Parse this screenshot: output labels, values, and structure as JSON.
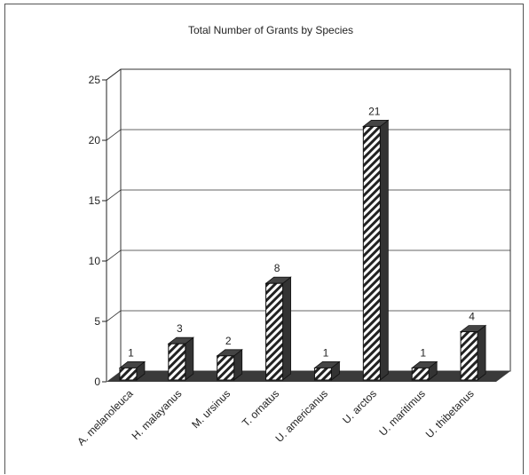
{
  "chart_data": {
    "type": "bar",
    "title": "Total Number of Grants by Species",
    "xlabel": "",
    "ylabel": "",
    "categories": [
      "A. melanoleuca",
      "H. malayanus",
      "M. ursinus",
      "T. ornatus",
      "U. americanus",
      "U. arctos",
      "U. maritimus",
      "U. thibetanus"
    ],
    "values": [
      1,
      3,
      2,
      8,
      1,
      21,
      1,
      4
    ],
    "ylim": [
      0,
      25
    ],
    "yticks": [
      "0",
      "5",
      "10",
      "15",
      "20",
      "25"
    ],
    "grid": true,
    "style": "3d-hatched",
    "colors": {
      "bar_face": "#ffffff",
      "hatch": "#222222",
      "bar_top": "#444444",
      "bar_side": "#333333",
      "floor": "#3a3a3a",
      "grid": "#333333"
    }
  }
}
